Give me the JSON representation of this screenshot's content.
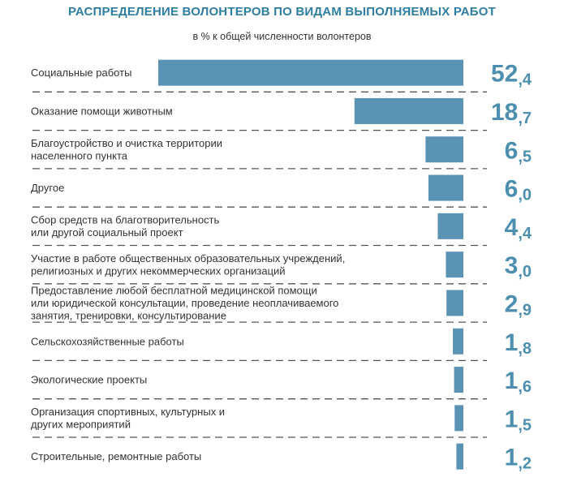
{
  "chart_data": {
    "type": "bar",
    "orientation": "horizontal",
    "title": "РАСПРЕДЕЛЕНИЕ ВОЛОНТЕРОВ ПО ВИДАМ ВЫПОЛНЯЕМЫХ РАБОТ",
    "subtitle": "в % к общей численности волонтеров",
    "categories": [
      [
        "Социальные работы"
      ],
      [
        "Оказание помощи животным"
      ],
      [
        "Благоустройство и очистка территории",
        "населенного пункта"
      ],
      [
        "Другое"
      ],
      [
        "Сбор средств на благотворительность",
        "или другой социальный проект"
      ],
      [
        "Участие в работе общественных образовательных учреждений,",
        "религиозных и других некоммерческих организаций"
      ],
      [
        "Предоставление любой бесплатной медицинской помощи",
        "или юридической консультации, проведение неоплачиваемого",
        "занятия, тренировки, консультирование"
      ],
      [
        "Сельскохозяйственные работы"
      ],
      [
        "Экологические проекты"
      ],
      [
        "Организация  спортивных, культурных и",
        "других мероприятий"
      ],
      [
        "Строительные, ремонтные работы"
      ]
    ],
    "values": [
      52.4,
      18.7,
      6.5,
      6.0,
      4.4,
      3.0,
      2.9,
      1.8,
      1.6,
      1.5,
      1.2
    ],
    "value_labels": [
      [
        "52",
        ",4"
      ],
      [
        "18",
        ",7"
      ],
      [
        "6",
        ",5"
      ],
      [
        "6",
        ",0"
      ],
      [
        "4",
        ",4"
      ],
      [
        "3",
        ",0"
      ],
      [
        "2",
        ",9"
      ],
      [
        "1",
        ",8"
      ],
      [
        "1",
        ",6"
      ],
      [
        "1",
        ",5"
      ],
      [
        "1",
        ",2"
      ]
    ],
    "bar_color": "#5b93b5",
    "value_color": "#4d8fb0",
    "title_color": "#2e7ea3",
    "grid": false,
    "legend": "none"
  }
}
